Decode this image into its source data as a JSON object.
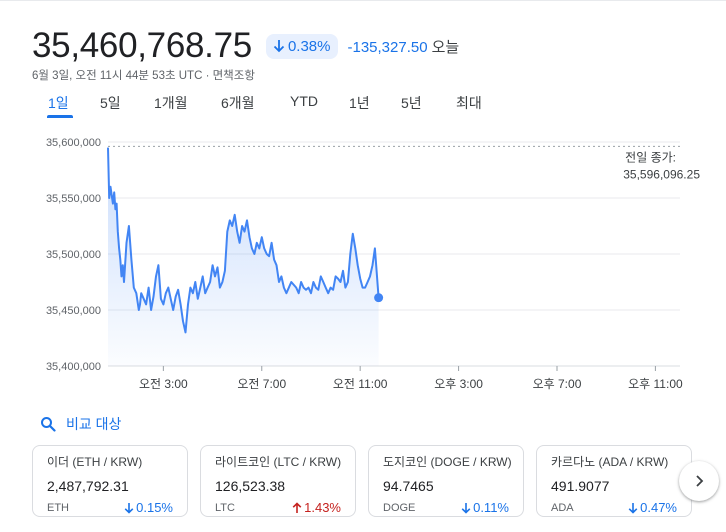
{
  "header": {
    "price": "35,460,768.75",
    "percent_change": "0.38%",
    "abs_change": "-135,327.50",
    "period_label": "오늘",
    "meta": "6월 3일, 오전 11시 44분 53초 UTC · 면책조항"
  },
  "tabs": [
    "1일",
    "5일",
    "1개월",
    "6개월",
    "YTD",
    "1년",
    "5년",
    "최대"
  ],
  "active_tab": "1일",
  "colors": {
    "accent": "#1a73e8",
    "down": "#1a73e8",
    "up": "#c5221f",
    "line": "#4285f4"
  },
  "chart_data": {
    "type": "area",
    "y_ticks": [
      "35,600,000",
      "35,550,000",
      "35,500,000",
      "35,450,000",
      "35,400,000"
    ],
    "ylim": [
      35400000,
      35600000
    ],
    "x_ticks": [
      "오전 3:00",
      "오전 7:00",
      "오전 11:00",
      "오후 3:00",
      "오후 7:00",
      "오후 11:00"
    ],
    "x_tick_hours": [
      3,
      7,
      11,
      15,
      19,
      23
    ],
    "xlim_hours": [
      0.75,
      24
    ],
    "previous_close": {
      "label": "전일 종가:",
      "value_text": "35,596,096.25",
      "value": 35596096.25
    },
    "series": [
      {
        "x": [
          0.75,
          0.8,
          0.85,
          0.95,
          1.0,
          1.05,
          1.1,
          1.15,
          1.2,
          1.25,
          1.3,
          1.35,
          1.4,
          1.5,
          1.6,
          1.7,
          1.8,
          1.9,
          2.0,
          2.05,
          2.1,
          2.2,
          2.3,
          2.4,
          2.5,
          2.6,
          2.7,
          2.8,
          2.9,
          3.0,
          3.1,
          3.2,
          3.3,
          3.4,
          3.5,
          3.6,
          3.7,
          3.8,
          3.9,
          4.0,
          4.1,
          4.2,
          4.3,
          4.4,
          4.5,
          4.6,
          4.7,
          4.8,
          4.9,
          5.0,
          5.1,
          5.2,
          5.3,
          5.4,
          5.5,
          5.6,
          5.7,
          5.8,
          5.9,
          6.0,
          6.1,
          6.2,
          6.3,
          6.4,
          6.5,
          6.6,
          6.7,
          6.8,
          6.9,
          7.0,
          7.1,
          7.2,
          7.3,
          7.4,
          7.5,
          7.6,
          7.7,
          7.8,
          7.9,
          8.0,
          8.2,
          8.4,
          8.5,
          8.6,
          8.7,
          8.8,
          8.9,
          9.0,
          9.1,
          9.2,
          9.3,
          9.4,
          9.5,
          9.6,
          9.7,
          9.8,
          9.9,
          10.0,
          10.1,
          10.2,
          10.3,
          10.4,
          10.5,
          10.6,
          10.7,
          10.8,
          10.9,
          11.0,
          11.1,
          11.2,
          11.3,
          11.4,
          11.5,
          11.6,
          11.75
        ],
        "y": [
          35595000,
          35550000,
          35560000,
          35545000,
          35555000,
          35540000,
          35545000,
          35520000,
          35505000,
          35495000,
          35480000,
          35490000,
          35475000,
          35510000,
          35525000,
          35495000,
          35470000,
          35465000,
          35450000,
          35455000,
          35465000,
          35460000,
          35455000,
          35470000,
          35450000,
          35462000,
          35480000,
          35490000,
          35460000,
          35455000,
          35465000,
          35470000,
          35460000,
          35450000,
          35462000,
          35468000,
          35455000,
          35440000,
          35430000,
          35455000,
          35470000,
          35465000,
          35475000,
          35460000,
          35470000,
          35480000,
          35465000,
          35470000,
          35475000,
          35490000,
          35480000,
          35488000,
          35470000,
          35475000,
          35485000,
          35520000,
          35530000,
          35525000,
          35535000,
          35520000,
          35510000,
          35525000,
          35520000,
          35530000,
          35515000,
          35505000,
          35500000,
          35510000,
          35505000,
          35515000,
          35505000,
          35500000,
          35498000,
          35510000,
          35495000,
          35490000,
          35475000,
          35480000,
          35470000,
          35465000,
          35475000,
          35470000,
          35465000,
          35475000,
          35470000,
          35468000,
          35470000,
          35465000,
          35475000,
          35470000,
          35468000,
          35480000,
          35475000,
          35470000,
          35465000,
          35470000,
          35468000,
          35480000,
          35478000,
          35475000,
          35485000,
          35470000,
          35475000,
          35500000,
          35518000,
          35505000,
          35490000,
          35478000,
          35470000,
          35470000,
          35475000,
          35480000,
          35490000,
          35505000,
          35461000
        ]
      }
    ]
  },
  "compare": {
    "label": "비교 대상"
  },
  "cards": [
    {
      "name": "이더 (ETH / KRW)",
      "price": "2,487,792.31",
      "symbol": "ETH",
      "change": "0.15%",
      "direction": "down"
    },
    {
      "name": "라이트코인 (LTC / KRW)",
      "price": "126,523.38",
      "symbol": "LTC",
      "change": "1.43%",
      "direction": "up"
    },
    {
      "name": "도지코인 (DOGE / KRW)",
      "price": "94.7465",
      "symbol": "DOGE",
      "change": "0.11%",
      "direction": "down"
    },
    {
      "name": "카르다노 (ADA / KRW)",
      "price": "491.9077",
      "symbol": "ADA",
      "change": "0.47%",
      "direction": "down"
    }
  ]
}
